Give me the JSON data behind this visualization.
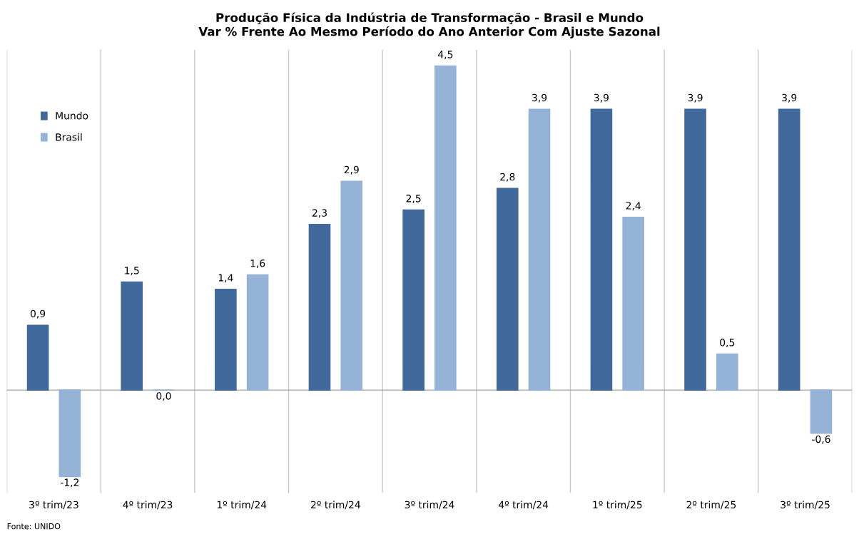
{
  "chart_data": {
    "type": "bar",
    "title": "Produção Física da Indústria de Transformação - Brasil e Mundo\nVar % Frente Ao Mesmo Período do Ano Anterior Com Ajuste Sazonal",
    "categories": [
      "3º trim/23",
      "4º trim/23",
      "1º trim/24",
      "2º trim/24",
      "3º trim/24",
      "4º trim/24",
      "1º trim/25",
      "2º trim/25",
      "3º trim/25"
    ],
    "series": [
      {
        "name": "Mundo",
        "color": "#41699c",
        "values": [
          0.9,
          1.5,
          1.4,
          2.3,
          2.5,
          2.8,
          3.9,
          3.9,
          3.9
        ],
        "value_labels": [
          "0,9",
          "1,5",
          "1,4",
          "2,3",
          "2,5",
          "2,8",
          "3,9",
          "3,9",
          "3,9"
        ]
      },
      {
        "name": "Brasil",
        "color": "#95b3d7",
        "values": [
          -1.2,
          0.0,
          1.6,
          2.9,
          4.5,
          3.9,
          2.4,
          0.5,
          -0.6
        ],
        "value_labels": [
          "-1,2",
          "0,0",
          "1,6",
          "2,9",
          "4,5",
          "3,9",
          "2,4",
          "0,5",
          "-0,6"
        ]
      }
    ],
    "tick_labels": "x",
    "grid": "x",
    "legend": "top left",
    "annotations": [
      "Fonte: UNIDO"
    ]
  }
}
